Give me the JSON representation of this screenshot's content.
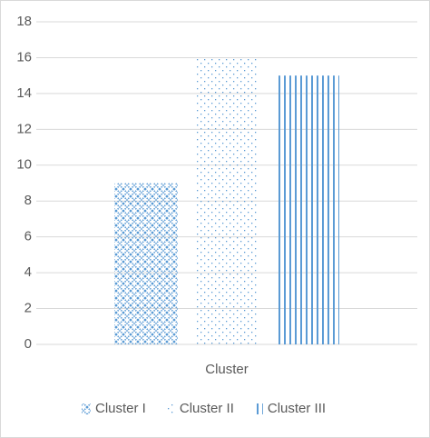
{
  "chart_data": {
    "type": "bar",
    "categories": [
      "Cluster"
    ],
    "series": [
      {
        "name": "Cluster I",
        "color": "#5b9bd5",
        "pattern": "crosshatch",
        "values": [
          9
        ]
      },
      {
        "name": "Cluster II",
        "color": "#5b9bd5",
        "pattern": "dots",
        "values": [
          16
        ]
      },
      {
        "name": "Cluster III",
        "color": "#5b9bd5",
        "pattern": "vertical-lines",
        "values": [
          15
        ]
      }
    ],
    "ylim": [
      0,
      18
    ],
    "yticks": [
      0,
      2,
      4,
      6,
      8,
      10,
      12,
      14,
      16,
      18
    ],
    "grid": true,
    "legend": "bottom"
  }
}
